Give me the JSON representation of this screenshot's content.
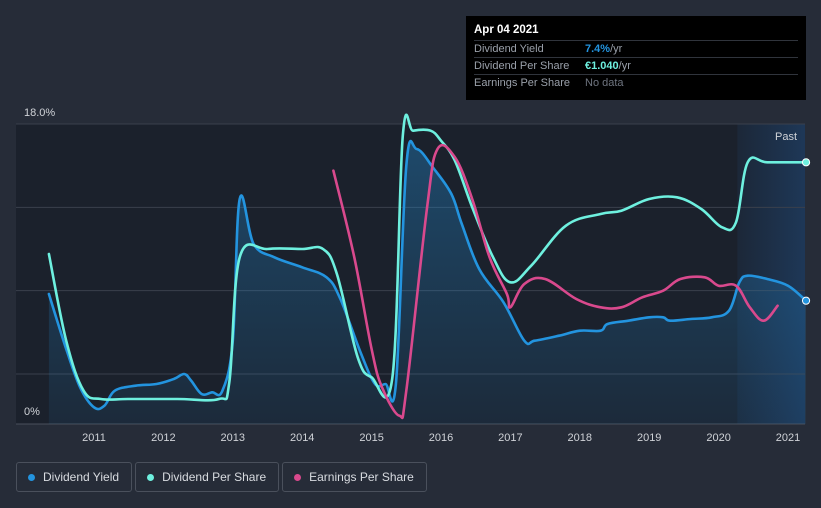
{
  "chart_data": {
    "type": "line",
    "y_axis": {
      "min": 0,
      "max": 18.0,
      "top_label": "18.0%",
      "bottom_label": "0%"
    },
    "x_ticks": [
      "2011",
      "2012",
      "2013",
      "2014",
      "2015",
      "2016",
      "2017",
      "2018",
      "2019",
      "2020",
      "2021"
    ],
    "past_label": "Past",
    "series": [
      {
        "name": "Dividend Yield",
        "color": "#2394df",
        "fill": true,
        "points": [
          [
            2010.35,
            7.8
          ],
          [
            2010.6,
            4.5
          ],
          [
            2010.8,
            2.2
          ],
          [
            2011.0,
            1.0
          ],
          [
            2011.15,
            1.1
          ],
          [
            2011.3,
            2.0
          ],
          [
            2011.6,
            2.3
          ],
          [
            2011.9,
            2.4
          ],
          [
            2012.15,
            2.7
          ],
          [
            2012.3,
            3.0
          ],
          [
            2012.4,
            2.6
          ],
          [
            2012.55,
            1.8
          ],
          [
            2012.7,
            1.9
          ],
          [
            2012.85,
            2.0
          ],
          [
            2013.0,
            5.0
          ],
          [
            2013.1,
            13.5
          ],
          [
            2013.3,
            10.8
          ],
          [
            2013.6,
            10.0
          ],
          [
            2014.0,
            9.4
          ],
          [
            2014.35,
            8.8
          ],
          [
            2014.55,
            7.5
          ],
          [
            2014.85,
            4.2
          ],
          [
            2015.05,
            2.4
          ],
          [
            2015.2,
            2.4
          ],
          [
            2015.35,
            2.4
          ],
          [
            2015.5,
            15.5
          ],
          [
            2015.65,
            16.5
          ],
          [
            2015.9,
            15.3
          ],
          [
            2016.15,
            13.8
          ],
          [
            2016.3,
            12.0
          ],
          [
            2016.55,
            9.3
          ],
          [
            2016.9,
            7.3
          ],
          [
            2017.2,
            5.0
          ],
          [
            2017.35,
            5.0
          ],
          [
            2017.7,
            5.3
          ],
          [
            2018.0,
            5.6
          ],
          [
            2018.3,
            5.6
          ],
          [
            2018.4,
            6.0
          ],
          [
            2018.7,
            6.2
          ],
          [
            2019.0,
            6.4
          ],
          [
            2019.2,
            6.4
          ],
          [
            2019.3,
            6.2
          ],
          [
            2019.6,
            6.3
          ],
          [
            2019.9,
            6.4
          ],
          [
            2020.15,
            6.8
          ],
          [
            2020.3,
            8.5
          ],
          [
            2020.42,
            8.9
          ],
          [
            2020.7,
            8.7
          ],
          [
            2021.0,
            8.3
          ],
          [
            2021.26,
            7.4
          ]
        ]
      },
      {
        "name": "Dividend Per Share",
        "color": "#6ef0df",
        "fill": false,
        "points": [
          [
            2010.35,
            10.2
          ],
          [
            2010.6,
            5.0
          ],
          [
            2010.85,
            2.0
          ],
          [
            2011.1,
            1.5
          ],
          [
            2011.5,
            1.5
          ],
          [
            2012.2,
            1.5
          ],
          [
            2012.8,
            1.5
          ],
          [
            2012.95,
            2.5
          ],
          [
            2013.1,
            10.0
          ],
          [
            2013.5,
            10.5
          ],
          [
            2014.0,
            10.5
          ],
          [
            2014.3,
            10.5
          ],
          [
            2014.5,
            9.0
          ],
          [
            2014.8,
            4.0
          ],
          [
            2015.0,
            2.8
          ],
          [
            2015.3,
            2.8
          ],
          [
            2015.45,
            17.3
          ],
          [
            2015.6,
            17.6
          ],
          [
            2015.85,
            17.6
          ],
          [
            2016.0,
            17.0
          ],
          [
            2016.2,
            15.8
          ],
          [
            2016.45,
            13.0
          ],
          [
            2016.75,
            10.0
          ],
          [
            2017.0,
            8.5
          ],
          [
            2017.3,
            9.5
          ],
          [
            2017.8,
            11.9
          ],
          [
            2018.3,
            12.6
          ],
          [
            2018.6,
            12.8
          ],
          [
            2019.0,
            13.5
          ],
          [
            2019.4,
            13.6
          ],
          [
            2019.75,
            12.9
          ],
          [
            2020.05,
            11.8
          ],
          [
            2020.25,
            12.1
          ],
          [
            2020.42,
            15.7
          ],
          [
            2020.7,
            15.7
          ],
          [
            2021.26,
            15.7
          ]
        ]
      },
      {
        "name": "Earnings Per Share",
        "color": "#d9498d",
        "fill": false,
        "points": [
          [
            2014.45,
            15.2
          ],
          [
            2014.75,
            10.0
          ],
          [
            2015.0,
            4.5
          ],
          [
            2015.15,
            2.2
          ],
          [
            2015.4,
            0.5
          ],
          [
            2015.5,
            2.0
          ],
          [
            2015.8,
            13.0
          ],
          [
            2015.95,
            16.5
          ],
          [
            2016.2,
            16.0
          ],
          [
            2016.45,
            13.5
          ],
          [
            2016.7,
            10.0
          ],
          [
            2016.95,
            7.8
          ],
          [
            2017.0,
            7.0
          ],
          [
            2017.2,
            8.4
          ],
          [
            2017.5,
            8.7
          ],
          [
            2017.95,
            7.5
          ],
          [
            2018.3,
            7.0
          ],
          [
            2018.6,
            7.0
          ],
          [
            2018.9,
            7.6
          ],
          [
            2019.2,
            8.0
          ],
          [
            2019.45,
            8.7
          ],
          [
            2019.8,
            8.8
          ],
          [
            2020.0,
            8.3
          ],
          [
            2020.25,
            8.3
          ],
          [
            2020.45,
            7.0
          ],
          [
            2020.65,
            6.2
          ],
          [
            2020.85,
            7.1
          ]
        ]
      }
    ],
    "legend": [
      "Dividend Yield",
      "Dividend Per Share",
      "Earnings Per Share"
    ]
  },
  "tooltip": {
    "date": "Apr 04 2021",
    "rows": [
      {
        "label": "Dividend Yield",
        "value": "7.4%",
        "unit": " /yr",
        "color": "#2394df"
      },
      {
        "label": "Dividend Per Share",
        "value": "€1.040",
        "unit": " /yr",
        "color": "#6ef0df"
      },
      {
        "label": "Earnings Per Share",
        "value": "No data"
      }
    ]
  },
  "colors": {
    "background": "#262c38",
    "plot_background": "#1b212c",
    "grid": "#3a404c",
    "past_band": "#1e3a5c"
  }
}
